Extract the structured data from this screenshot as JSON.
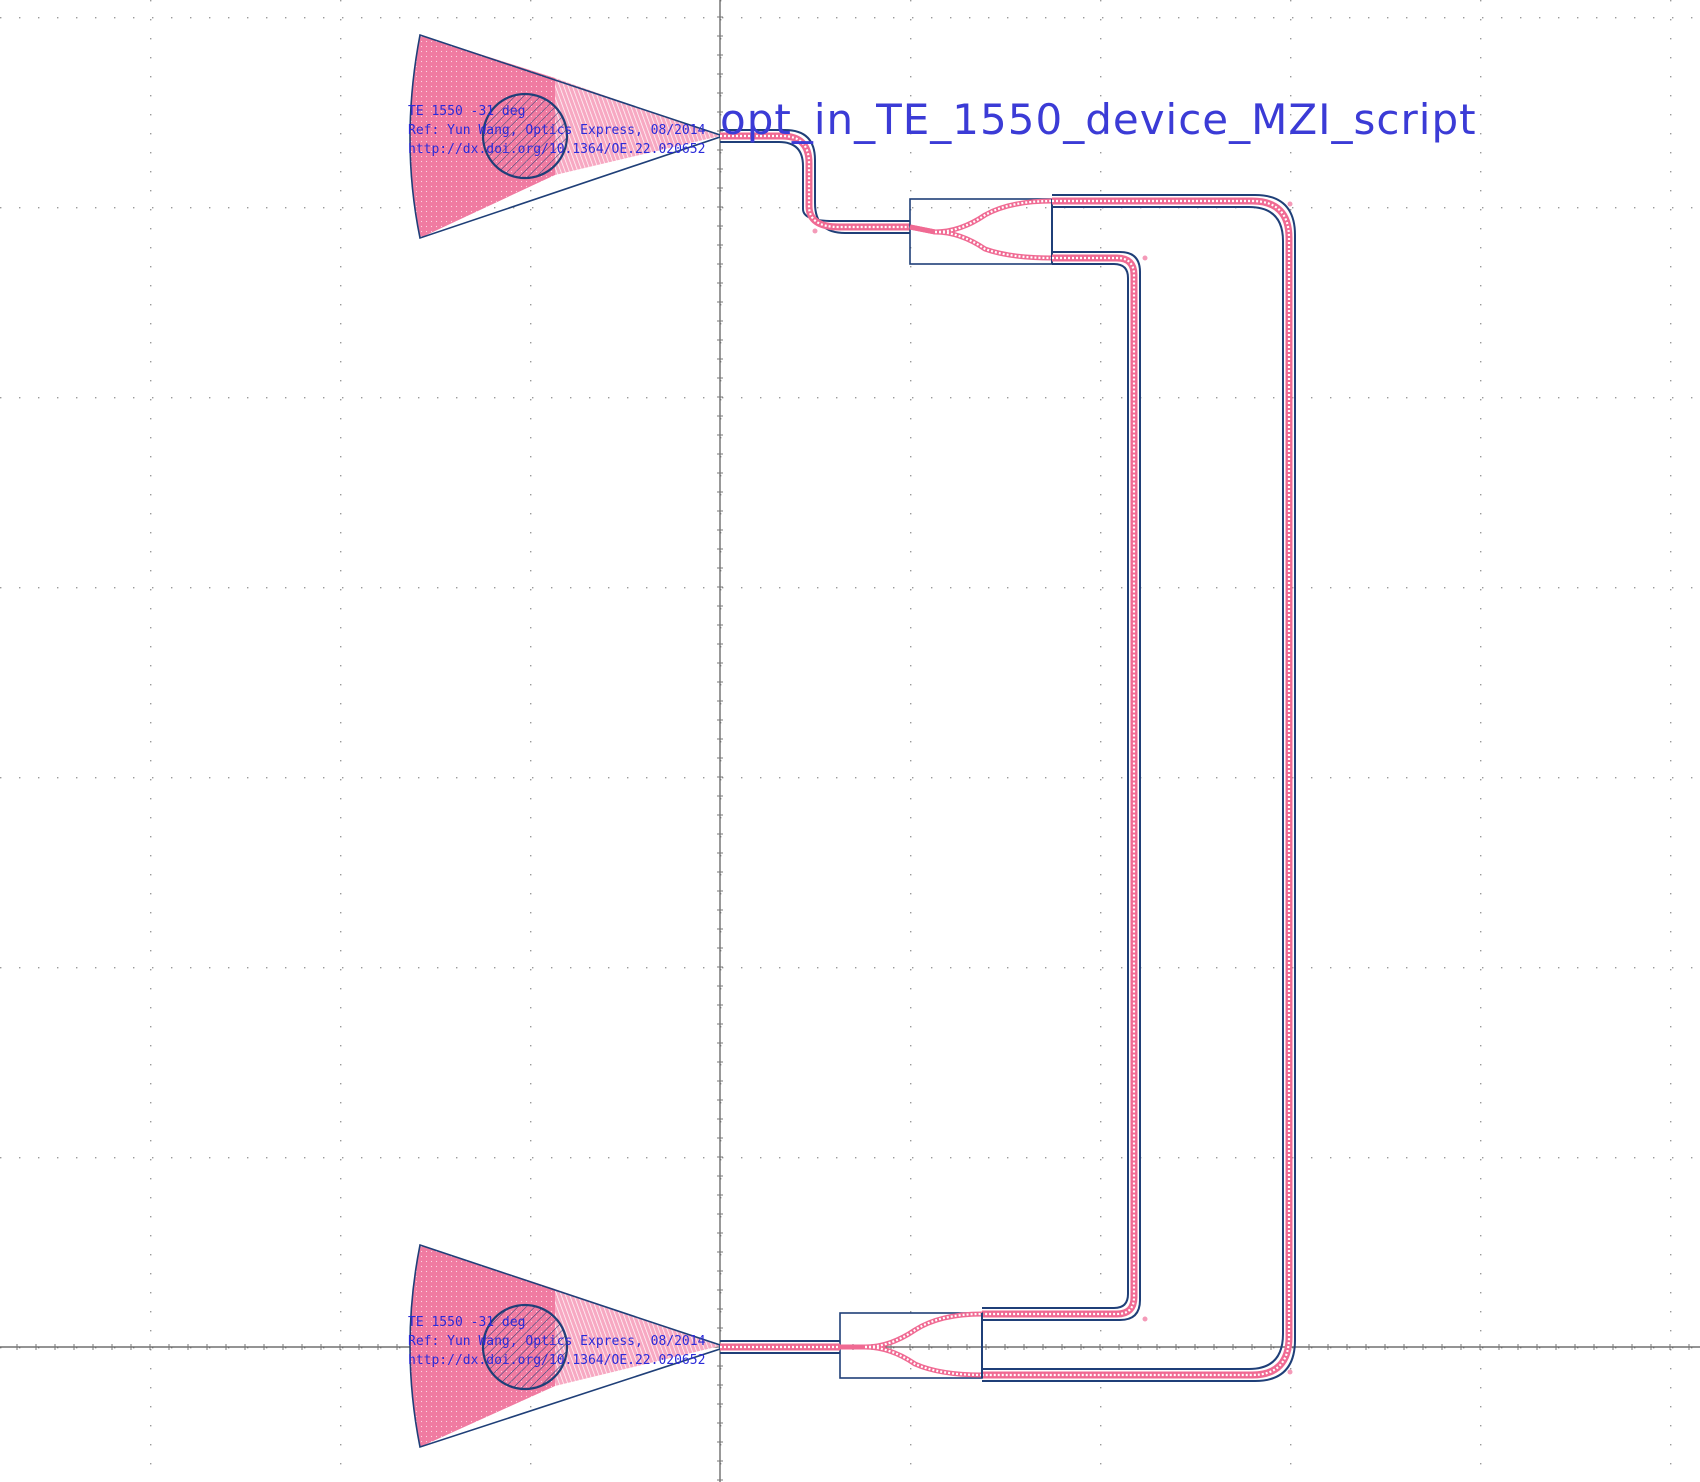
{
  "layout_cell": {
    "label": "opt_in_TE_1550_device_MZI_script"
  },
  "grating_couplers": [
    {
      "id": "gc-top",
      "lines": [
        "TE 1550 -31 deg",
        "Ref: Yun Wang, Optics Express, 08/2014",
        "http://dx.doi.org/10.1364/OE.22.020652"
      ]
    },
    {
      "id": "gc-bottom",
      "lines": [
        "TE 1550 -31 deg",
        "Ref: Yun Wang, Optics Express, 08/2014",
        "http://dx.doi.org/10.1364/OE.22.020652"
      ]
    }
  ],
  "colors": {
    "waveguide": "#f06a93",
    "outline": "#1f3f78",
    "text": "#2b2bd9",
    "grid": "#9a9a9a",
    "background": "#ffffff"
  }
}
